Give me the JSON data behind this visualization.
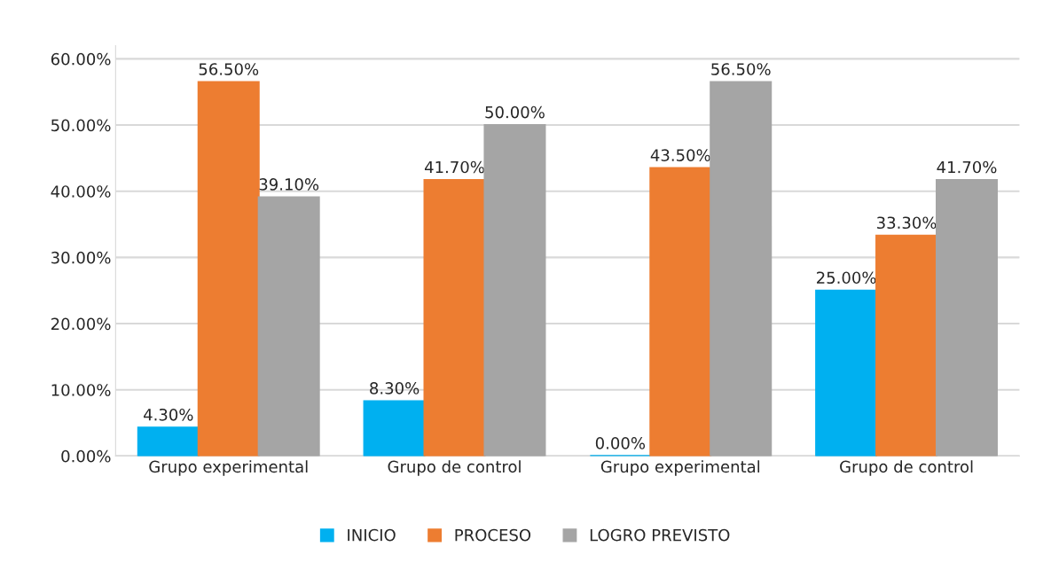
{
  "chart_data": {
    "type": "bar",
    "categories": [
      "Grupo experimental",
      "Grupo de control",
      "Grupo experimental",
      "Grupo de control"
    ],
    "series": [
      {
        "name": "INICIO",
        "color": "#00b0f0",
        "values": [
          4.3,
          8.3,
          0.0,
          25.0
        ],
        "value_labels": [
          "4.30%",
          "8.30%",
          "0.00%",
          "25.00%"
        ]
      },
      {
        "name": "PROCESO",
        "color": "#ed7d31",
        "values": [
          56.5,
          41.7,
          43.5,
          33.3
        ],
        "value_labels": [
          "56.50%",
          "41.70%",
          "43.50%",
          "33.30%"
        ]
      },
      {
        "name": "LOGRO PREVISTO",
        "color": "#a5a5a5",
        "values": [
          39.1,
          50.0,
          56.5,
          41.7
        ],
        "value_labels": [
          "39.10%",
          "50.00%",
          "56.50%",
          "41.70%"
        ]
      }
    ],
    "ylim": [
      0,
      62
    ],
    "yticks": [
      {
        "value": 0,
        "label": "0.00%"
      },
      {
        "value": 10,
        "label": "10.00%"
      },
      {
        "value": 20,
        "label": "20.00%"
      },
      {
        "value": 30,
        "label": "30.00%"
      },
      {
        "value": 40,
        "label": "40.00%"
      },
      {
        "value": 50,
        "label": "50.00%"
      },
      {
        "value": 60,
        "label": "60.00%"
      }
    ],
    "grid": "y",
    "legend": "bottom"
  }
}
